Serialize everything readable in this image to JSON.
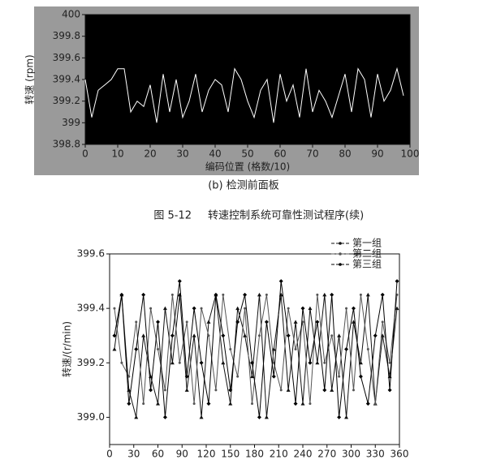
{
  "chart_data": [
    {
      "type": "line",
      "background": "#000000",
      "frame": "#9a9a9a",
      "y_label": "转速 (rpm)",
      "x_label": "编码位置 (格数/10)",
      "xlim": [
        0,
        100
      ],
      "xticks": [
        0,
        10,
        20,
        30,
        40,
        50,
        60,
        70,
        80,
        90,
        100
      ],
      "ylim": [
        398.8,
        400
      ],
      "yticks": [
        398.8,
        399,
        399.2,
        399.4,
        399.6,
        399.8,
        400
      ],
      "x": [
        0,
        2,
        4,
        6,
        8,
        10,
        12,
        14,
        16,
        18,
        20,
        22,
        24,
        26,
        28,
        30,
        32,
        34,
        36,
        38,
        40,
        42,
        44,
        46,
        48,
        50,
        52,
        54,
        56,
        58,
        60,
        62,
        64,
        66,
        68,
        70,
        72,
        74,
        76,
        78,
        80,
        82,
        84,
        86,
        88,
        90,
        92,
        94,
        96,
        98
      ],
      "series": [
        {
          "color": "#ffffff",
          "values": [
            399.4,
            399.05,
            399.3,
            399.35,
            399.4,
            399.5,
            399.5,
            399.1,
            399.2,
            399.15,
            399.35,
            399.0,
            399.45,
            399.1,
            399.4,
            399.05,
            399.2,
            399.45,
            399.1,
            399.3,
            399.4,
            399.35,
            399.1,
            399.5,
            399.4,
            399.2,
            399.05,
            399.3,
            399.4,
            399.0,
            399.45,
            399.2,
            399.35,
            399.05,
            399.5,
            399.1,
            399.3,
            399.2,
            399.05,
            399.25,
            399.45,
            399.1,
            399.5,
            399.4,
            399.05,
            399.45,
            399.2,
            399.3,
            399.5,
            399.25
          ]
        }
      ]
    },
    {
      "type": "line",
      "y_label": "转速/(r/min)",
      "legend": "top-right",
      "xlim": [
        0,
        360
      ],
      "xticks": [
        0,
        30,
        60,
        90,
        120,
        150,
        180,
        210,
        240,
        270,
        300,
        330,
        360
      ],
      "ylim": [
        398.9,
        399.6
      ],
      "yticks": [
        {
          "value": 399,
          "label": "399.0"
        },
        399.2,
        399.4,
        399.6
      ],
      "x": [
        6,
        15,
        24,
        33,
        42,
        51,
        60,
        69,
        78,
        87,
        96,
        105,
        114,
        123,
        132,
        141,
        150,
        159,
        168,
        177,
        186,
        195,
        204,
        213,
        222,
        231,
        240,
        249,
        258,
        267,
        276,
        285,
        294,
        303,
        312,
        321,
        330,
        339,
        348,
        357
      ],
      "series": [
        {
          "name": "第一组",
          "color": "#111111",
          "marker": "triangle",
          "values": [
            399.25,
            399.45,
            399.1,
            399.0,
            399.3,
            399.15,
            399.05,
            399.4,
            399.2,
            399.45,
            399.1,
            399.3,
            399.0,
            399.35,
            399.45,
            399.2,
            399.05,
            399.4,
            399.3,
            399.15,
            399.45,
            399.0,
            399.25,
            399.45,
            399.1,
            399.35,
            399.05,
            399.4,
            399.2,
            399.45,
            399.1,
            399.3,
            399.0,
            399.35,
            399.2,
            399.45,
            399.05,
            399.3,
            399.15,
            399.4
          ]
        },
        {
          "name": "第二组",
          "color": "#555555",
          "marker": "dot",
          "values": [
            399.4,
            399.2,
            399.15,
            399.35,
            399.05,
            399.4,
            399.25,
            399.1,
            399.45,
            399.2,
            399.35,
            399.05,
            399.4,
            399.3,
            399.1,
            399.45,
            399.25,
            399.15,
            399.4,
            399.05,
            399.3,
            399.45,
            399.2,
            399.1,
            399.4,
            399.25,
            399.35,
            399.05,
            399.45,
            399.2,
            399.3,
            399.15,
            399.4,
            399.1,
            399.45,
            399.25,
            399.05,
            399.35,
            399.2,
            399.45
          ]
        },
        {
          "name": "第三组",
          "color": "#000000",
          "marker": "diamond",
          "values": [
            399.3,
            399.45,
            399.05,
            399.25,
            399.45,
            399.1,
            399.35,
            399.0,
            399.3,
            399.5,
            399.15,
            399.4,
            399.2,
            399.05,
            399.45,
            399.3,
            399.1,
            399.35,
            399.45,
            399.2,
            399.0,
            399.35,
            399.15,
            399.5,
            399.3,
            399.05,
            399.4,
            399.2,
            399.35,
            399.1,
            399.45,
            399.0,
            399.25,
            399.4,
            399.15,
            399.05,
            399.3,
            399.45,
            399.1,
            399.5
          ]
        }
      ]
    }
  ],
  "captions": {
    "panel": "(b) 检测前面板",
    "figure_number": "图 5-12",
    "figure_title": "转速控制系统可靠性测试程序(续)"
  }
}
